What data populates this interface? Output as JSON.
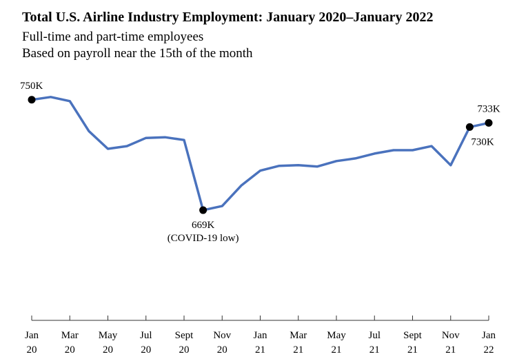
{
  "title": "Total U.S. Airline Industry Employment: January 2020–January 2022",
  "subtitle_lines": [
    "Full-time and part-time employees",
    "Based on payroll near the 15th of the month"
  ],
  "colors": {
    "line": "#4a72bd",
    "marker": "#000000",
    "axis": "#333333"
  },
  "chart_data": {
    "type": "line",
    "title": "Total U.S. Airline Industry Employment: January 2020–January 2022",
    "xlabel": "",
    "ylabel": "",
    "x": [
      "2020-01",
      "2020-02",
      "2020-03",
      "2020-04",
      "2020-05",
      "2020-06",
      "2020-07",
      "2020-08",
      "2020-09",
      "2020-10",
      "2020-11",
      "2020-12",
      "2021-01",
      "2021-02",
      "2021-03",
      "2021-04",
      "2021-05",
      "2021-06",
      "2021-07",
      "2021-08",
      "2021-09",
      "2021-10",
      "2021-11",
      "2021-12",
      "2022-01"
    ],
    "series": [
      {
        "values": [
          750,
          752,
          749,
          727,
          714,
          716,
          722,
          722.5,
          720.5,
          669,
          672,
          687,
          698,
          701.5,
          702,
          701,
          705,
          707,
          710.5,
          713,
          713,
          716,
          702,
          730,
          733
        ],
        "color": "#4a72bd"
      }
    ],
    "ylim": [
      620,
      760
    ],
    "tick_labels": [
      {
        "month": "Jan",
        "year": "20"
      },
      {
        "month": "Mar",
        "year": "20"
      },
      {
        "month": "May",
        "year": "20"
      },
      {
        "month": "Jul",
        "year": "20"
      },
      {
        "month": "Sept",
        "year": "20"
      },
      {
        "month": "Nov",
        "year": "20"
      },
      {
        "month": "Jan",
        "year": "21"
      },
      {
        "month": "Mar",
        "year": "21"
      },
      {
        "month": "May",
        "year": "21"
      },
      {
        "month": "Jul",
        "year": "21"
      },
      {
        "month": "Sept",
        "year": "21"
      },
      {
        "month": "Nov",
        "year": "21"
      },
      {
        "month": "Jan",
        "year": "22"
      }
    ],
    "annotations": [
      {
        "index": 0,
        "lines": [
          "750K"
        ],
        "placement": "above"
      },
      {
        "index": 9,
        "lines": [
          "669K",
          "(COVID-19 low)"
        ],
        "placement": "below"
      },
      {
        "index": 23,
        "lines": [
          "730K"
        ],
        "placement": "below"
      },
      {
        "index": 24,
        "lines": [
          "733K"
        ],
        "placement": "above"
      }
    ],
    "grid": false,
    "legend": "none"
  }
}
